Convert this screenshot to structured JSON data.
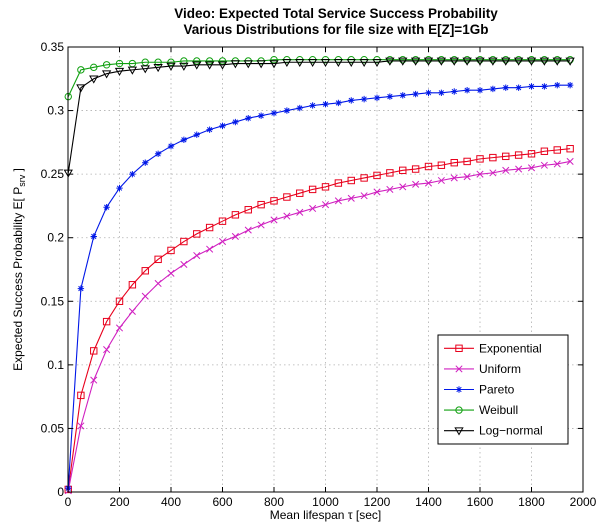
{
  "chart_data": {
    "type": "line",
    "title": "Video: Expected Total Service Success Probability",
    "subtitle": "Various Distributions for file size with E[Z]=1Gb",
    "xlabel": "Mean lifespan τ [sec]",
    "ylabel_main": "Expected Success Probability E[ P",
    "ylabel_sub": "srv",
    "ylabel_end": " ]",
    "xlim": [
      0,
      2000
    ],
    "ylim": [
      0,
      0.35
    ],
    "xticks": [
      "0",
      "200",
      "400",
      "600",
      "800",
      "1000",
      "1200",
      "1400",
      "1600",
      "1800",
      "2000"
    ],
    "yticks": [
      "0",
      "0.05",
      "0.1",
      "0.15",
      "0.2",
      "0.25",
      "0.3",
      "0.35"
    ],
    "grid": true,
    "legend_position": "bottom-right",
    "x": [
      1,
      50,
      100,
      150,
      200,
      250,
      300,
      350,
      400,
      450,
      500,
      550,
      600,
      650,
      700,
      750,
      800,
      850,
      900,
      950,
      1000,
      1050,
      1100,
      1150,
      1200,
      1250,
      1300,
      1350,
      1400,
      1450,
      1500,
      1550,
      1600,
      1650,
      1700,
      1750,
      1800,
      1850,
      1900,
      1950
    ],
    "series": [
      {
        "name": "Exponential",
        "color": "#e8001c",
        "marker": "square",
        "values": [
          0.002,
          0.076,
          0.111,
          0.134,
          0.15,
          0.163,
          0.174,
          0.183,
          0.19,
          0.197,
          0.203,
          0.208,
          0.213,
          0.218,
          0.222,
          0.226,
          0.229,
          0.232,
          0.235,
          0.238,
          0.24,
          0.243,
          0.245,
          0.247,
          0.249,
          0.251,
          0.253,
          0.254,
          0.256,
          0.257,
          0.259,
          0.26,
          0.262,
          0.263,
          0.264,
          0.265,
          0.266,
          0.268,
          0.269,
          0.27
        ]
      },
      {
        "name": "Uniform",
        "color": "#d020c0",
        "marker": "x",
        "values": [
          0.001,
          0.052,
          0.088,
          0.112,
          0.129,
          0.142,
          0.154,
          0.164,
          0.172,
          0.179,
          0.186,
          0.191,
          0.197,
          0.201,
          0.206,
          0.21,
          0.214,
          0.217,
          0.22,
          0.223,
          0.226,
          0.229,
          0.231,
          0.233,
          0.236,
          0.238,
          0.24,
          0.242,
          0.243,
          0.245,
          0.247,
          0.248,
          0.25,
          0.251,
          0.253,
          0.254,
          0.255,
          0.257,
          0.258,
          0.26
        ]
      },
      {
        "name": "Pareto",
        "color": "#0018e8",
        "marker": "star",
        "values": [
          0.003,
          0.16,
          0.201,
          0.224,
          0.239,
          0.25,
          0.259,
          0.266,
          0.272,
          0.277,
          0.281,
          0.285,
          0.288,
          0.291,
          0.294,
          0.296,
          0.298,
          0.3,
          0.302,
          0.304,
          0.305,
          0.306,
          0.308,
          0.309,
          0.31,
          0.311,
          0.312,
          0.313,
          0.314,
          0.314,
          0.315,
          0.316,
          0.316,
          0.317,
          0.318,
          0.318,
          0.319,
          0.319,
          0.32,
          0.32
        ]
      },
      {
        "name": "Weibull",
        "color": "#10a010",
        "marker": "circle",
        "values": [
          0.311,
          0.332,
          0.334,
          0.336,
          0.337,
          0.337,
          0.338,
          0.338,
          0.338,
          0.339,
          0.339,
          0.339,
          0.339,
          0.339,
          0.339,
          0.339,
          0.34,
          0.34,
          0.34,
          0.34,
          0.34,
          0.34,
          0.34,
          0.34,
          0.34,
          0.34,
          0.34,
          0.34,
          0.34,
          0.34,
          0.34,
          0.34,
          0.34,
          0.34,
          0.34,
          0.34,
          0.34,
          0.34,
          0.34,
          0.34
        ]
      },
      {
        "name": "Log−normal",
        "color": "#000000",
        "marker": "triangle-down",
        "values": [
          0.251,
          0.318,
          0.325,
          0.329,
          0.331,
          0.332,
          0.333,
          0.334,
          0.335,
          0.335,
          0.336,
          0.336,
          0.336,
          0.337,
          0.337,
          0.337,
          0.337,
          0.338,
          0.338,
          0.338,
          0.338,
          0.338,
          0.338,
          0.338,
          0.338,
          0.339,
          0.339,
          0.339,
          0.339,
          0.339,
          0.339,
          0.339,
          0.339,
          0.339,
          0.339,
          0.339,
          0.339,
          0.339,
          0.339,
          0.339
        ]
      }
    ]
  }
}
